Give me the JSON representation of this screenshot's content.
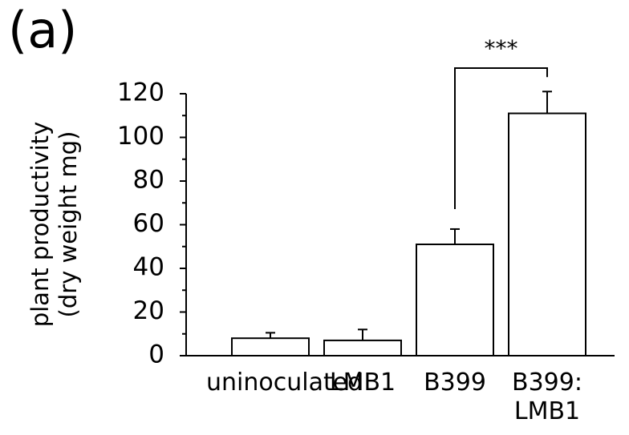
{
  "chart_data": {
    "type": "bar",
    "panel_label": "(a)",
    "ylabel": [
      "plant productivity",
      "(dry weight mg)"
    ],
    "categories": [
      "uninoculated",
      "LMB1",
      "B399",
      "B399:\nLMB1"
    ],
    "values": [
      8,
      7,
      51,
      111
    ],
    "errors": [
      2.5,
      5,
      7,
      10
    ],
    "color": "#ffffff",
    "edge_color": "#000000",
    "ylim": [
      0,
      120
    ],
    "yticks": [
      0,
      20,
      40,
      60,
      80,
      100,
      120
    ],
    "minor_yticks": [
      10,
      30,
      50,
      70,
      90,
      110
    ],
    "annotations": [
      {
        "text": "***",
        "from": 2,
        "to": 3
      }
    ]
  }
}
